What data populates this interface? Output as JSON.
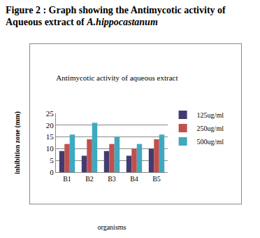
{
  "caption": {
    "text": "Figure 2 : Graph showing the Antimycotic activity of Aqueous extract of",
    "species": "A.hippocastanum"
  },
  "chart_data": {
    "type": "bar",
    "title": "Antimycotic activity of aqueous extract",
    "x_label": "organisms",
    "y_label": "inhibition zone (mm)",
    "categories": [
      "B1",
      "B2",
      "B3",
      "B4",
      "B5"
    ],
    "series": [
      {
        "name": "125ug/ml",
        "color": "#453a70",
        "values": [
          9,
          7,
          9,
          7,
          10
        ]
      },
      {
        "name": "250ug/ml",
        "color": "#c0504d",
        "values": [
          12,
          14,
          12,
          10,
          14
        ]
      },
      {
        "name": "500ug/ml",
        "color": "#3fa9c0",
        "values": [
          16,
          21,
          15,
          12,
          16
        ]
      }
    ],
    "ylim": [
      0,
      25
    ],
    "yticks": [
      0,
      5,
      10,
      15,
      20,
      25
    ],
    "grid": true,
    "legend": "right"
  }
}
